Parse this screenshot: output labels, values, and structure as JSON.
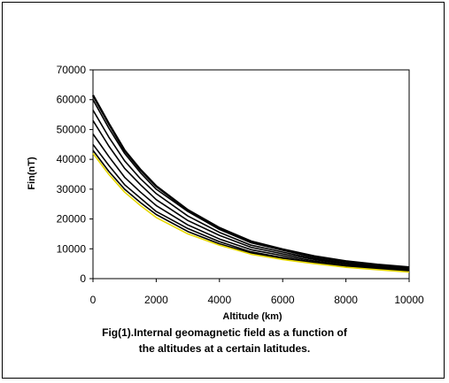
{
  "caption": {
    "line1": "Fig(1).Internal geomagnetic field as a function of",
    "line2": "the altitudes at a certain latitudes."
  },
  "chart_data": {
    "type": "line",
    "xlabel": "Altitude (km)",
    "ylabel": "Fin(nT)",
    "xlim": [
      0,
      10000
    ],
    "ylim": [
      0,
      70000
    ],
    "xticks": [
      0,
      2000,
      4000,
      6000,
      8000,
      10000
    ],
    "yticks": [
      0,
      10000,
      20000,
      30000,
      40000,
      50000,
      60000,
      70000
    ],
    "grid": false,
    "legend": "none",
    "x": [
      0,
      500,
      1000,
      1500,
      2000,
      3000,
      4000,
      5000,
      6000,
      7000,
      8000,
      9000,
      10000
    ],
    "series": [
      {
        "color": "#000000",
        "values": [
          61500,
          52000,
          43000,
          36500,
          31000,
          23000,
          17000,
          12500,
          9800,
          7500,
          5800,
          4700,
          3800
        ]
      },
      {
        "color": "#000000",
        "values": [
          60000,
          50500,
          42000,
          35500,
          30000,
          22500,
          16500,
          12000,
          9500,
          7200,
          5600,
          4500,
          3600
        ]
      },
      {
        "color": "#000000",
        "values": [
          56500,
          47500,
          39500,
          33500,
          28500,
          21000,
          15500,
          11200,
          8900,
          6800,
          5200,
          4200,
          3300
        ]
      },
      {
        "color": "#000000",
        "values": [
          53000,
          44500,
          37000,
          31500,
          26500,
          19500,
          14500,
          10500,
          8300,
          6400,
          4900,
          3900,
          3100
        ]
      },
      {
        "color": "#000000",
        "values": [
          48500,
          41000,
          34000,
          29000,
          24500,
          18000,
          13300,
          9700,
          7700,
          5900,
          4500,
          3600,
          2800
        ]
      },
      {
        "color": "#000000",
        "values": [
          45000,
          38000,
          31500,
          27000,
          22500,
          16800,
          12400,
          9000,
          7100,
          5500,
          4200,
          3300,
          2600
        ]
      },
      {
        "color": "#000000",
        "values": [
          43000,
          36000,
          30000,
          25500,
          21500,
          15800,
          11700,
          8600,
          6700,
          5200,
          4000,
          3100,
          2300
        ]
      },
      {
        "color": "#e6d800",
        "values": [
          42000,
          35000,
          29000,
          24500,
          20500,
          15000,
          11200,
          8200,
          6400,
          5000,
          3800,
          3000,
          2200
        ]
      }
    ]
  }
}
